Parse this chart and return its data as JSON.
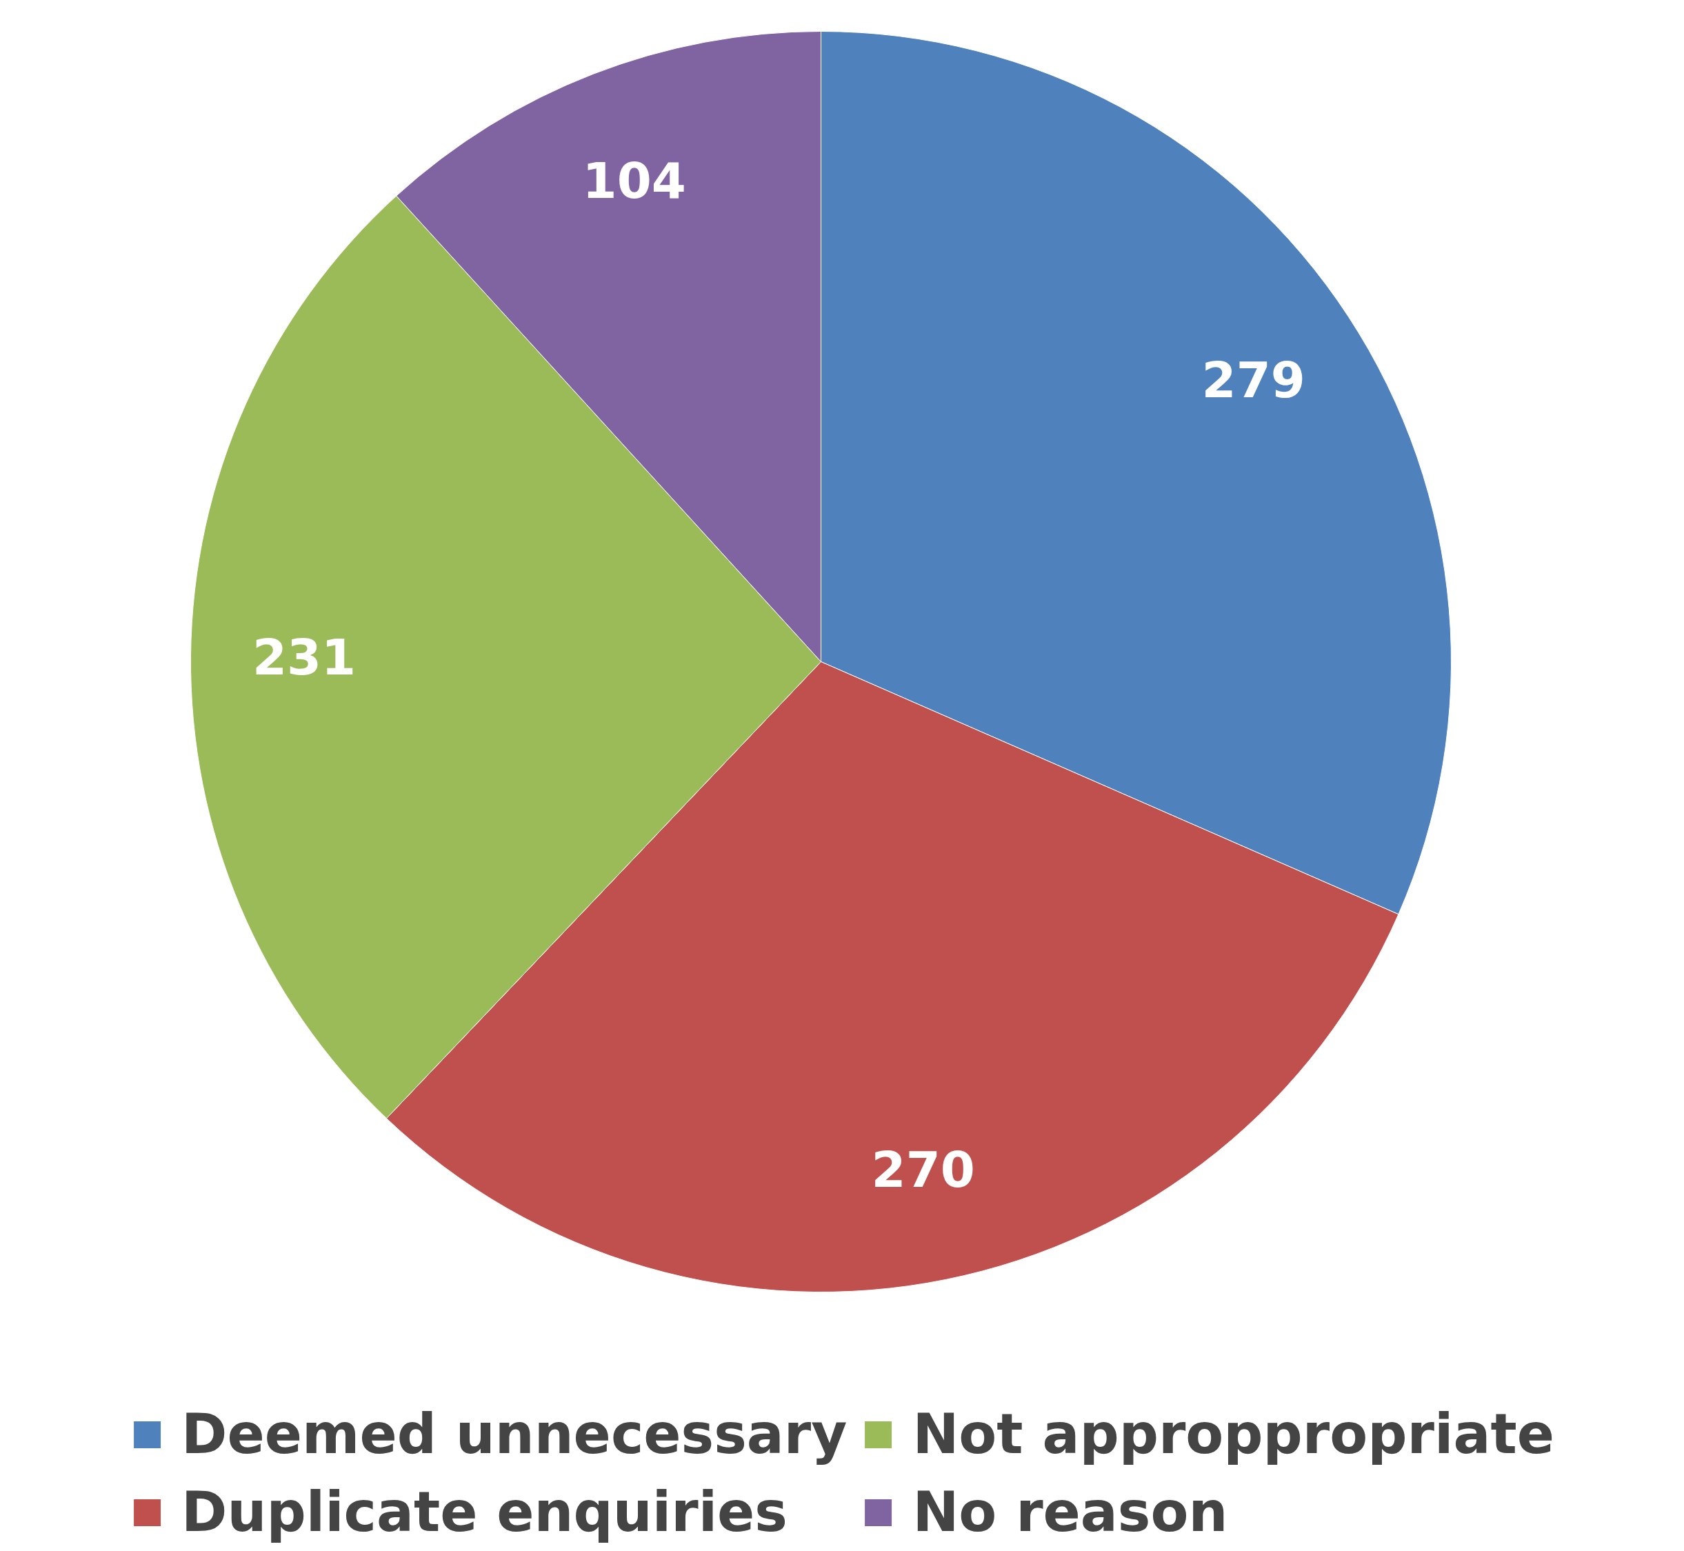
{
  "chart_data": {
    "type": "pie",
    "categories": [
      "Deemed unnecessary",
      "Duplicate enquiries",
      "Not approppropriate",
      "No reason"
    ],
    "values": [
      279,
      270,
      231,
      104
    ],
    "colors": [
      "#4f81bd",
      "#c0504d",
      "#9bbb59",
      "#8064a2"
    ],
    "data_labels": true,
    "legend": "bottom"
  }
}
